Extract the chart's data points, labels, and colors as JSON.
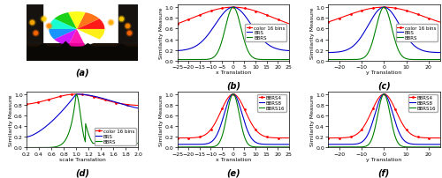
{
  "fig_width": 5.0,
  "fig_height": 2.03,
  "dpi": 100,
  "x_trans_min": -25,
  "x_trans_max": 25,
  "y_trans_min": -25,
  "y_trans_max": 25,
  "scale_min": 0.2,
  "scale_max": 2.0,
  "color_red": "#ff0000",
  "color_blue": "#0000cd",
  "color_green": "#008000",
  "label_color16": "color 16 bins",
  "label_brs": "BRS",
  "label_bbrs": "BBRS",
  "label_bbrs4": "BBRS4",
  "label_bbrs8": "BBRS8",
  "label_bbrs16": "BBRS16",
  "xlabel_x": "x Translation",
  "xlabel_y": "y Translation",
  "xlabel_scale": "scale Translation",
  "ylabel_sim": "Similarity Measure",
  "label_b": "(b)",
  "label_c": "(c)",
  "label_d": "(d)",
  "label_e": "(e)",
  "label_f": "(f)",
  "label_a": "(a)",
  "tick_fs": 4.5,
  "label_fs": 4.5,
  "legend_fs": 4.0,
  "caption_fs": 7.0,
  "lw": 0.8
}
